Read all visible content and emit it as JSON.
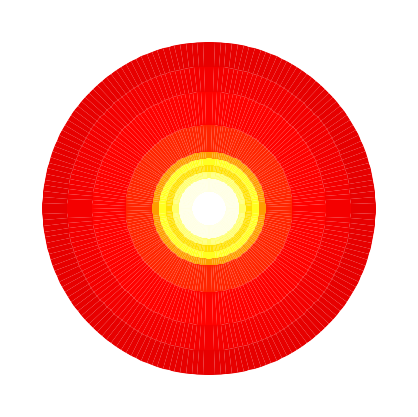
{
  "chart_data": {
    "type": "heatmap",
    "tick_labels": false,
    "grid": false,
    "rlim": [
      0,
      1
    ],
    "zlim": [
      0,
      1
    ],
    "radii": [
      0,
      0.1,
      0.18,
      0.22,
      0.26,
      0.3,
      0.34,
      0.5,
      0.7,
      0.85,
      1.0
    ],
    "values": [
      1.0,
      0.97,
      0.85,
      0.7,
      0.78,
      0.6,
      0.42,
      0.37,
      0.35,
      0.33
    ]
  }
}
